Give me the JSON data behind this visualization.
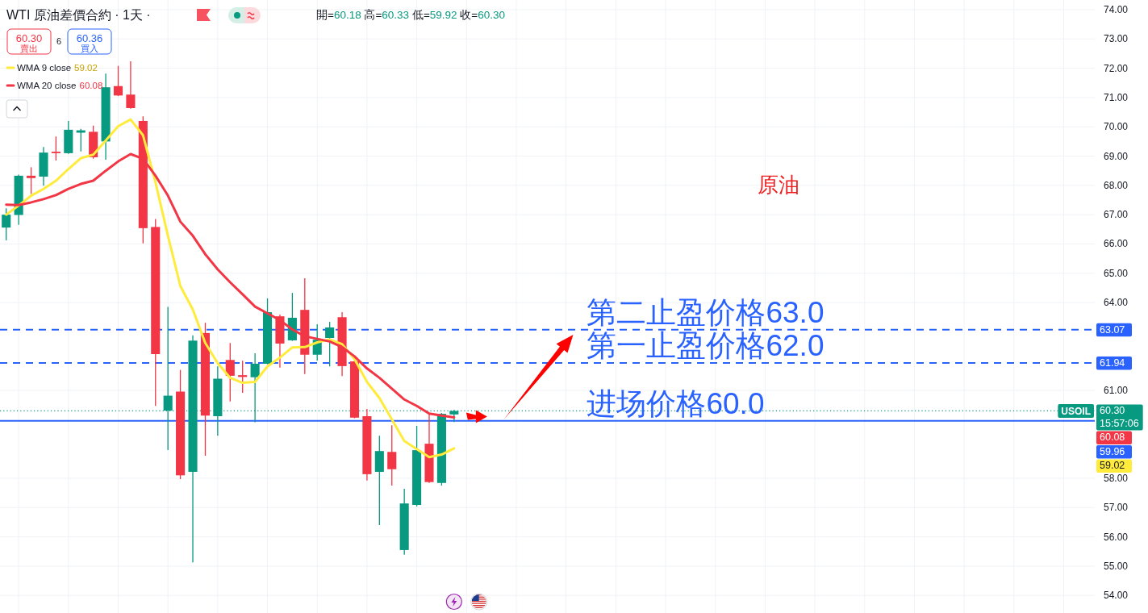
{
  "chart_data": {
    "type": "candlestick",
    "title": "WTI 原油差價合約 · 1天 ·",
    "categories": [
      null,
      null,
      null,
      null,
      null,
      null,
      null,
      null,
      null,
      null,
      null,
      null,
      null,
      null,
      null,
      null,
      null,
      null,
      null,
      null,
      null,
      null,
      null,
      null,
      null,
      null,
      null,
      null,
      null,
      null,
      null,
      null,
      null,
      null,
      null,
      null,
      null,
      null,
      null,
      null,
      null,
      null,
      null,
      null,
      null,
      null,
      null,
      null,
      null,
      null,
      null,
      null,
      null,
      null,
      null,
      null,
      null,
      null,
      null,
      null,
      null,
      null,
      null,
      null,
      null,
      null,
      null,
      null,
      null,
      null,
      null,
      null,
      null,
      null,
      null,
      null,
      null,
      null,
      null,
      null,
      null,
      null,
      null,
      null,
      null,
      null,
      null,
      null
    ],
    "ohlc": [
      [
        66.56,
        67.22,
        66.12,
        67.0
      ],
      [
        66.99,
        68.37,
        66.65,
        68.33
      ],
      [
        68.33,
        68.62,
        67.71,
        68.25
      ],
      [
        68.3,
        69.31,
        67.99,
        69.12
      ],
      [
        69.15,
        69.67,
        68.85,
        69.1
      ],
      [
        69.1,
        70.2,
        69.08,
        69.9
      ],
      [
        69.8,
        69.93,
        69.16,
        69.88
      ],
      [
        69.83,
        70.04,
        68.91,
        68.96
      ],
      [
        69.5,
        71.82,
        68.88,
        71.35
      ],
      [
        71.39,
        72.08,
        71.05,
        71.07
      ],
      [
        71.1,
        72.24,
        70.62,
        70.64
      ],
      [
        70.2,
        70.36,
        66.02,
        66.54
      ],
      [
        66.58,
        66.85,
        60.47,
        62.24
      ],
      [
        60.31,
        63.85,
        58.96,
        60.82
      ],
      [
        60.96,
        61.7,
        57.97,
        58.1
      ],
      [
        58.22,
        62.88,
        55.13,
        62.7
      ],
      [
        62.96,
        63.31,
        58.77,
        60.14
      ],
      [
        60.12,
        61.82,
        59.45,
        61.4
      ],
      [
        62.04,
        62.62,
        60.62,
        61.5
      ],
      [
        61.52,
        62.01,
        60.92,
        61.46
      ],
      [
        61.45,
        62.27,
        59.91,
        61.91
      ],
      [
        61.91,
        64.14,
        61.89,
        63.67
      ],
      [
        63.53,
        63.59,
        61.78,
        62.6
      ],
      [
        62.71,
        64.33,
        62.69,
        63.48
      ],
      [
        63.75,
        64.83,
        61.56,
        62.22
      ],
      [
        62.22,
        63.26,
        62.02,
        62.73
      ],
      [
        62.79,
        63.34,
        61.82,
        63.15
      ],
      [
        63.5,
        63.67,
        61.49,
        61.83
      ],
      [
        61.99,
        62.02,
        60.05,
        60.07
      ],
      [
        60.12,
        60.37,
        57.92,
        58.14
      ],
      [
        58.22,
        59.45,
        56.4,
        58.93
      ],
      [
        58.9,
        59.81,
        57.75,
        58.31
      ],
      [
        55.55,
        57.64,
        55.39,
        57.14
      ],
      [
        57.09,
        59.79,
        57.04,
        58.96
      ],
      [
        59.18,
        60.21,
        57.84,
        57.87
      ],
      [
        57.84,
        60.23,
        57.75,
        60.2
      ],
      [
        60.18,
        60.33,
        59.92,
        60.3
      ],
      null,
      null,
      null,
      null,
      null,
      null,
      null,
      null,
      null,
      null,
      null,
      null,
      null,
      null,
      null,
      null,
      null,
      null,
      null,
      null,
      null,
      null,
      null,
      null,
      null,
      null,
      null,
      null,
      null,
      null,
      null,
      null,
      null,
      null,
      null,
      null,
      null,
      null,
      null,
      null,
      null,
      null,
      null,
      null,
      null,
      null,
      null,
      null,
      null,
      null,
      null
    ],
    "series": [
      {
        "name": "WMA 9 close",
        "type": "line",
        "color": "#ffeb3b",
        "values": [
          67.0,
          67.31,
          67.65,
          67.88,
          68.16,
          68.56,
          68.93,
          69.05,
          69.53,
          70.02,
          70.25,
          69.71,
          68.1,
          66.28,
          64.56,
          63.76,
          62.62,
          61.93,
          61.43,
          61.26,
          61.29,
          61.82,
          62.12,
          62.47,
          62.48,
          62.64,
          62.74,
          62.58,
          62.07,
          61.29,
          60.74,
          60.01,
          59.27,
          59.0,
          58.72,
          58.81,
          59.02,
          null,
          null,
          null,
          null,
          null,
          null,
          null,
          null,
          null,
          null,
          null,
          null,
          null,
          null,
          null,
          null,
          null,
          null,
          null,
          null,
          null,
          null,
          null,
          null,
          null,
          null,
          null,
          null,
          null,
          null,
          null,
          null,
          null,
          null,
          null,
          null,
          null,
          null,
          null,
          null,
          null,
          null,
          null,
          null,
          null,
          null,
          null,
          null,
          null,
          null,
          null
        ]
      },
      {
        "name": "WMA 20 close",
        "type": "line",
        "color": "#f23645",
        "values": [
          67.34,
          67.33,
          67.42,
          67.53,
          67.67,
          67.88,
          68.05,
          68.16,
          68.5,
          68.82,
          69.07,
          68.91,
          68.33,
          67.65,
          66.76,
          66.28,
          65.65,
          65.13,
          64.69,
          64.28,
          63.86,
          63.63,
          63.4,
          63.08,
          62.85,
          62.76,
          62.67,
          62.48,
          62.16,
          61.75,
          61.43,
          61.06,
          60.69,
          60.47,
          60.21,
          60.14,
          60.08,
          null,
          null,
          null,
          null,
          null,
          null,
          null,
          null,
          null,
          null,
          null,
          null,
          null,
          null,
          null,
          null,
          null,
          null,
          null,
          null,
          null,
          null,
          null,
          null,
          null,
          null,
          null,
          null,
          null,
          null,
          null,
          null,
          null,
          null,
          null,
          null,
          null,
          null,
          null,
          null,
          null,
          null,
          null,
          null,
          null,
          null,
          null,
          null,
          null,
          null,
          null
        ]
      }
    ],
    "ylim": [
      53.4,
      74.33
    ],
    "yticks": [
      {
        "value": 54,
        "label": "54.00"
      },
      {
        "value": 55,
        "label": "55.00"
      },
      {
        "value": 56,
        "label": "56.00"
      },
      {
        "value": 57,
        "label": "57.00"
      },
      {
        "value": 58,
        "label": "58.00"
      },
      {
        "value": 61,
        "label": "61.00"
      },
      {
        "value": 64,
        "label": "64.00"
      },
      {
        "value": 65,
        "label": "65.00"
      },
      {
        "value": 66,
        "label": "66.00"
      },
      {
        "value": 67,
        "label": "67.00"
      },
      {
        "value": 68,
        "label": "68.00"
      },
      {
        "value": 69,
        "label": "69.00"
      },
      {
        "value": 70,
        "label": "70.00"
      },
      {
        "value": 71,
        "label": "71.00"
      },
      {
        "value": 72,
        "label": "72.00"
      },
      {
        "value": 73,
        "label": "73.00"
      },
      {
        "value": 74,
        "label": "74.00"
      }
    ],
    "ref_lines": [
      {
        "axis": "y",
        "value": 63.07,
        "label": "63.07",
        "color": "#2962ff",
        "line_style": "dashed"
      },
      {
        "axis": "y",
        "value": 61.94,
        "label": "61.94",
        "color": "#2962ff",
        "line_style": "dashed"
      },
      {
        "axis": "y",
        "value": 59.96,
        "label": "59.96",
        "color": "#2962ff",
        "line_style": "solid"
      },
      {
        "axis": "y",
        "value": 60.3,
        "label": "60.30",
        "color": "#089981",
        "line_style": "dotted"
      }
    ],
    "annotations": [
      {
        "text": "第二止盈价格63.0",
        "y": 63.07
      },
      {
        "text": "第一止盈价格62.0",
        "y": 61.94
      },
      {
        "text": "进场价格60.0",
        "y": 59.96
      },
      {
        "text": "USOIL",
        "y": 60.3
      },
      "15:57:06",
      "原油",
      "開=60.18 高=60.33 低=59.92 收=60.30",
      "60.30",
      "賣出",
      "6",
      "60.36",
      "買入",
      "59.02",
      "60.08",
      "59.02",
      "60.08"
    ],
    "legend": "top left",
    "grid": true,
    "tick_labels": "y"
  }
}
